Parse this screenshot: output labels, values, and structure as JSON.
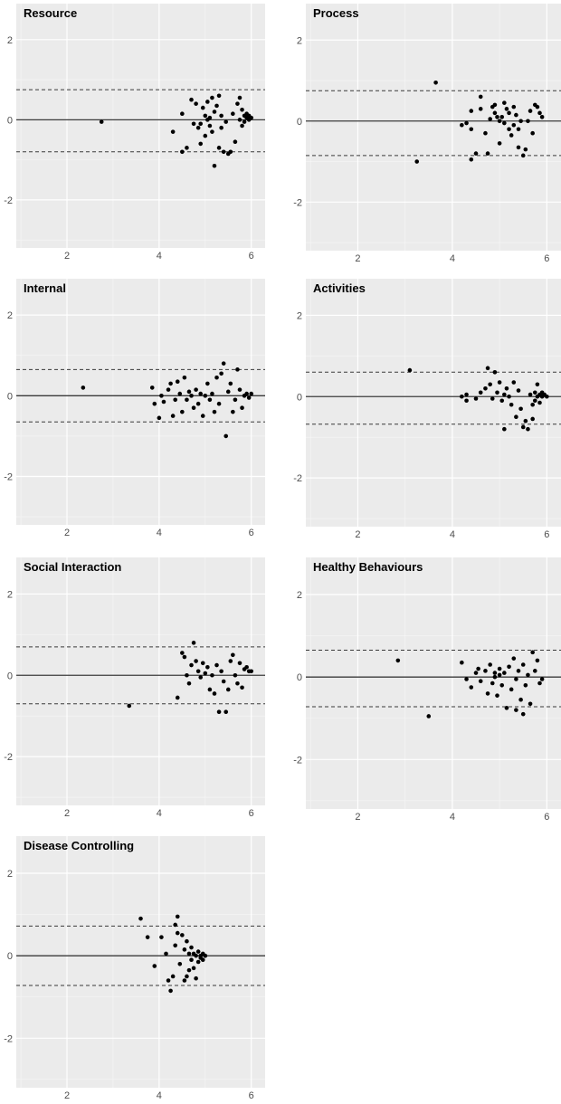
{
  "chart_data": [
    {
      "type": "scatter",
      "title": "Resource",
      "x_ticks": [
        "2",
        "4",
        "6"
      ],
      "y_ticks": [
        "2",
        "0",
        "-2"
      ],
      "xlim": [
        0.9,
        6.3
      ],
      "ylim": [
        -3.2,
        2.9
      ],
      "hlines": {
        "mean": 0,
        "upper_loa": 0.75,
        "lower_loa": -0.8
      },
      "points": [
        [
          2.75,
          -0.05
        ],
        [
          4.3,
          -0.3
        ],
        [
          4.5,
          0.15
        ],
        [
          4.5,
          -0.8
        ],
        [
          4.6,
          -0.7
        ],
        [
          4.7,
          0.5
        ],
        [
          4.75,
          -0.1
        ],
        [
          4.8,
          0.4
        ],
        [
          4.85,
          -0.2
        ],
        [
          4.9,
          -0.1
        ],
        [
          4.9,
          -0.6
        ],
        [
          4.95,
          0.3
        ],
        [
          5.0,
          0.1
        ],
        [
          5.0,
          -0.4
        ],
        [
          5.05,
          0.0
        ],
        [
          5.05,
          0.45
        ],
        [
          5.1,
          -0.15
        ],
        [
          5.1,
          0.05
        ],
        [
          5.15,
          0.55
        ],
        [
          5.15,
          -0.3
        ],
        [
          5.2,
          -1.15
        ],
        [
          5.2,
          0.2
        ],
        [
          5.25,
          0.35
        ],
        [
          5.3,
          0.6
        ],
        [
          5.3,
          -0.7
        ],
        [
          5.35,
          -0.2
        ],
        [
          5.35,
          0.1
        ],
        [
          5.4,
          -0.8
        ],
        [
          5.45,
          -0.05
        ],
        [
          5.5,
          -0.85
        ],
        [
          5.55,
          -0.8
        ],
        [
          5.6,
          0.15
        ],
        [
          5.65,
          -0.55
        ],
        [
          5.7,
          0.4
        ],
        [
          5.75,
          0.0
        ],
        [
          5.75,
          0.55
        ],
        [
          5.8,
          -0.15
        ],
        [
          5.8,
          0.25
        ],
        [
          5.85,
          0.1
        ],
        [
          5.85,
          -0.05
        ],
        [
          5.9,
          0.05
        ],
        [
          5.9,
          0.15
        ],
        [
          5.95,
          0.0
        ],
        [
          5.95,
          0.1
        ],
        [
          6.0,
          0.05
        ]
      ]
    },
    {
      "type": "scatter",
      "title": "Process",
      "x_ticks": [
        "2",
        "4",
        "6"
      ],
      "y_ticks": [
        "2",
        "0",
        "-2"
      ],
      "xlim": [
        0.9,
        6.3
      ],
      "ylim": [
        -3.2,
        2.9
      ],
      "hlines": {
        "mean": 0,
        "upper_loa": 0.75,
        "lower_loa": -0.85
      },
      "points": [
        [
          3.25,
          -1.0
        ],
        [
          3.65,
          0.95
        ],
        [
          4.2,
          -0.1
        ],
        [
          4.3,
          -0.05
        ],
        [
          4.4,
          0.25
        ],
        [
          4.4,
          -0.2
        ],
        [
          4.4,
          -0.95
        ],
        [
          4.5,
          -0.8
        ],
        [
          4.6,
          0.3
        ],
        [
          4.6,
          0.6
        ],
        [
          4.7,
          -0.3
        ],
        [
          4.75,
          -0.8
        ],
        [
          4.8,
          0.05
        ],
        [
          4.85,
          0.35
        ],
        [
          4.9,
          0.2
        ],
        [
          4.9,
          0.4
        ],
        [
          4.95,
          0.1
        ],
        [
          5.0,
          0.0
        ],
        [
          5.0,
          -0.55
        ],
        [
          5.05,
          0.1
        ],
        [
          5.1,
          -0.05
        ],
        [
          5.1,
          0.45
        ],
        [
          5.15,
          0.3
        ],
        [
          5.2,
          -0.2
        ],
        [
          5.2,
          0.2
        ],
        [
          5.25,
          -0.35
        ],
        [
          5.3,
          0.35
        ],
        [
          5.3,
          -0.1
        ],
        [
          5.35,
          0.15
        ],
        [
          5.4,
          -0.2
        ],
        [
          5.4,
          -0.65
        ],
        [
          5.45,
          0.0
        ],
        [
          5.5,
          -0.85
        ],
        [
          5.55,
          -0.7
        ],
        [
          5.6,
          0.0
        ],
        [
          5.65,
          0.25
        ],
        [
          5.7,
          -0.3
        ],
        [
          5.75,
          0.4
        ],
        [
          5.8,
          0.35
        ],
        [
          5.85,
          0.2
        ],
        [
          5.9,
          0.1
        ]
      ]
    },
    {
      "type": "scatter",
      "title": "Internal",
      "x_ticks": [
        "2",
        "4",
        "6"
      ],
      "y_ticks": [
        "2",
        "0",
        "-2"
      ],
      "xlim": [
        0.9,
        6.3
      ],
      "ylim": [
        -3.2,
        2.9
      ],
      "hlines": {
        "mean": 0,
        "upper_loa": 0.65,
        "lower_loa": -0.65
      },
      "points": [
        [
          2.35,
          0.2
        ],
        [
          3.85,
          0.2
        ],
        [
          3.9,
          -0.2
        ],
        [
          4.0,
          -0.55
        ],
        [
          4.05,
          0.0
        ],
        [
          4.1,
          -0.15
        ],
        [
          4.2,
          0.15
        ],
        [
          4.25,
          0.3
        ],
        [
          4.3,
          -0.5
        ],
        [
          4.35,
          -0.1
        ],
        [
          4.4,
          0.35
        ],
        [
          4.45,
          0.05
        ],
        [
          4.5,
          -0.4
        ],
        [
          4.55,
          0.45
        ],
        [
          4.6,
          -0.1
        ],
        [
          4.65,
          0.1
        ],
        [
          4.7,
          0.0
        ],
        [
          4.75,
          -0.3
        ],
        [
          4.8,
          0.15
        ],
        [
          4.85,
          -0.2
        ],
        [
          4.9,
          0.05
        ],
        [
          4.95,
          -0.5
        ],
        [
          5.0,
          0.0
        ],
        [
          5.05,
          0.3
        ],
        [
          5.1,
          -0.1
        ],
        [
          5.15,
          0.05
        ],
        [
          5.2,
          -0.4
        ],
        [
          5.25,
          0.45
        ],
        [
          5.3,
          -0.2
        ],
        [
          5.35,
          0.55
        ],
        [
          5.4,
          0.8
        ],
        [
          5.45,
          -1.0
        ],
        [
          5.5,
          0.1
        ],
        [
          5.55,
          0.3
        ],
        [
          5.6,
          -0.4
        ],
        [
          5.65,
          -0.1
        ],
        [
          5.7,
          0.65
        ],
        [
          5.75,
          0.15
        ],
        [
          5.8,
          -0.3
        ],
        [
          5.85,
          0.0
        ],
        [
          5.9,
          0.05
        ],
        [
          5.95,
          -0.05
        ],
        [
          6.0,
          0.05
        ]
      ]
    },
    {
      "type": "scatter",
      "title": "Activities",
      "x_ticks": [
        "2",
        "4",
        "6"
      ],
      "y_ticks": [
        "2",
        "0",
        "-2"
      ],
      "xlim": [
        0.9,
        6.3
      ],
      "ylim": [
        -3.2,
        2.9
      ],
      "hlines": {
        "mean": 0,
        "upper_loa": 0.6,
        "lower_loa": -0.68
      },
      "points": [
        [
          3.1,
          0.65
        ],
        [
          4.2,
          0.0
        ],
        [
          4.3,
          0.05
        ],
        [
          4.3,
          -0.1
        ],
        [
          4.5,
          -0.05
        ],
        [
          4.6,
          0.1
        ],
        [
          4.7,
          0.2
        ],
        [
          4.75,
          0.7
        ],
        [
          4.8,
          0.3
        ],
        [
          4.85,
          -0.05
        ],
        [
          4.9,
          0.6
        ],
        [
          4.95,
          0.1
        ],
        [
          5.0,
          0.35
        ],
        [
          5.05,
          -0.1
        ],
        [
          5.1,
          0.05
        ],
        [
          5.1,
          -0.8
        ],
        [
          5.15,
          0.2
        ],
        [
          5.2,
          0.0
        ],
        [
          5.25,
          -0.2
        ],
        [
          5.3,
          0.35
        ],
        [
          5.35,
          -0.5
        ],
        [
          5.4,
          0.15
        ],
        [
          5.45,
          -0.3
        ],
        [
          5.5,
          -0.75
        ],
        [
          5.55,
          -0.6
        ],
        [
          5.6,
          -0.8
        ],
        [
          5.65,
          0.05
        ],
        [
          5.7,
          -0.55
        ],
        [
          5.7,
          -0.2
        ],
        [
          5.75,
          0.1
        ],
        [
          5.75,
          -0.1
        ],
        [
          5.8,
          0.0
        ],
        [
          5.8,
          0.3
        ],
        [
          5.85,
          0.05
        ],
        [
          5.85,
          -0.15
        ],
        [
          5.9,
          0.1
        ],
        [
          5.9,
          0.0
        ],
        [
          5.95,
          0.05
        ],
        [
          6.0,
          0.0
        ]
      ]
    },
    {
      "type": "scatter",
      "title": "Social Interaction",
      "x_ticks": [
        "2",
        "4",
        "6"
      ],
      "y_ticks": [
        "2",
        "0",
        "-2"
      ],
      "xlim": [
        0.9,
        6.3
      ],
      "ylim": [
        -3.2,
        2.9
      ],
      "hlines": {
        "mean": 0,
        "upper_loa": 0.7,
        "lower_loa": -0.7
      },
      "points": [
        [
          3.35,
          -0.75
        ],
        [
          4.4,
          -0.55
        ],
        [
          4.5,
          0.55
        ],
        [
          4.55,
          0.45
        ],
        [
          4.6,
          0.0
        ],
        [
          4.65,
          -0.2
        ],
        [
          4.7,
          0.25
        ],
        [
          4.75,
          0.8
        ],
        [
          4.8,
          0.35
        ],
        [
          4.85,
          0.1
        ],
        [
          4.9,
          -0.05
        ],
        [
          4.95,
          0.3
        ],
        [
          5.0,
          0.05
        ],
        [
          5.05,
          0.2
        ],
        [
          5.1,
          -0.35
        ],
        [
          5.15,
          0.0
        ],
        [
          5.2,
          -0.45
        ],
        [
          5.25,
          0.25
        ],
        [
          5.3,
          -0.9
        ],
        [
          5.35,
          0.1
        ],
        [
          5.4,
          -0.15
        ],
        [
          5.45,
          -0.9
        ],
        [
          5.5,
          -0.35
        ],
        [
          5.55,
          0.35
        ],
        [
          5.6,
          0.5
        ],
        [
          5.65,
          0.0
        ],
        [
          5.7,
          -0.2
        ],
        [
          5.75,
          0.3
        ],
        [
          5.8,
          -0.3
        ],
        [
          5.85,
          0.15
        ],
        [
          5.9,
          0.2
        ],
        [
          5.95,
          0.1
        ],
        [
          6.0,
          0.1
        ]
      ]
    },
    {
      "type": "scatter",
      "title": "Healthy Behaviours",
      "x_ticks": [
        "2",
        "4",
        "6"
      ],
      "y_ticks": [
        "2",
        "0",
        "-2"
      ],
      "xlim": [
        0.9,
        6.3
      ],
      "ylim": [
        -3.2,
        2.9
      ],
      "hlines": {
        "mean": 0,
        "upper_loa": 0.65,
        "lower_loa": -0.72
      },
      "points": [
        [
          2.85,
          0.4
        ],
        [
          3.5,
          -0.95
        ],
        [
          4.2,
          0.35
        ],
        [
          4.3,
          -0.05
        ],
        [
          4.4,
          -0.25
        ],
        [
          4.5,
          0.1
        ],
        [
          4.55,
          0.2
        ],
        [
          4.6,
          -0.1
        ],
        [
          4.7,
          0.15
        ],
        [
          4.75,
          -0.4
        ],
        [
          4.8,
          0.3
        ],
        [
          4.85,
          -0.15
        ],
        [
          4.9,
          0.1
        ],
        [
          4.9,
          0.0
        ],
        [
          4.95,
          -0.45
        ],
        [
          5.0,
          0.05
        ],
        [
          5.0,
          0.2
        ],
        [
          5.05,
          -0.2
        ],
        [
          5.1,
          0.1
        ],
        [
          5.15,
          -0.75
        ],
        [
          5.2,
          0.25
        ],
        [
          5.25,
          -0.3
        ],
        [
          5.3,
          0.45
        ],
        [
          5.35,
          -0.8
        ],
        [
          5.35,
          -0.05
        ],
        [
          5.4,
          0.15
        ],
        [
          5.45,
          -0.55
        ],
        [
          5.5,
          -0.9
        ],
        [
          5.5,
          0.3
        ],
        [
          5.55,
          -0.2
        ],
        [
          5.6,
          0.05
        ],
        [
          5.65,
          -0.65
        ],
        [
          5.7,
          0.6
        ],
        [
          5.75,
          0.15
        ],
        [
          5.8,
          0.4
        ],
        [
          5.85,
          -0.15
        ],
        [
          5.9,
          -0.05
        ]
      ]
    },
    {
      "type": "scatter",
      "title": "Disease Controlling",
      "x_ticks": [
        "2",
        "4",
        "6"
      ],
      "y_ticks": [
        "2",
        "0",
        "-2"
      ],
      "xlim": [
        0.9,
        6.3
      ],
      "ylim": [
        -3.2,
        2.9
      ],
      "hlines": {
        "mean": 0,
        "upper_loa": 0.72,
        "lower_loa": -0.72
      },
      "points": [
        [
          3.6,
          0.9
        ],
        [
          3.75,
          0.45
        ],
        [
          3.9,
          -0.25
        ],
        [
          4.05,
          0.45
        ],
        [
          4.15,
          0.05
        ],
        [
          4.2,
          -0.6
        ],
        [
          4.25,
          -0.85
        ],
        [
          4.3,
          -0.5
        ],
        [
          4.35,
          0.75
        ],
        [
          4.35,
          0.25
        ],
        [
          4.4,
          0.55
        ],
        [
          4.4,
          0.95
        ],
        [
          4.45,
          -0.2
        ],
        [
          4.5,
          0.5
        ],
        [
          4.55,
          -0.6
        ],
        [
          4.55,
          0.15
        ],
        [
          4.6,
          -0.5
        ],
        [
          4.6,
          0.35
        ],
        [
          4.65,
          0.05
        ],
        [
          4.65,
          -0.35
        ],
        [
          4.7,
          -0.1
        ],
        [
          4.7,
          0.2
        ],
        [
          4.75,
          0.05
        ],
        [
          4.75,
          -0.3
        ],
        [
          4.8,
          0.0
        ],
        [
          4.8,
          -0.55
        ],
        [
          4.85,
          0.1
        ],
        [
          4.85,
          -0.15
        ],
        [
          4.9,
          0.0
        ],
        [
          4.9,
          -0.05
        ],
        [
          4.95,
          0.05
        ],
        [
          4.95,
          -0.1
        ],
        [
          5.0,
          0.0
        ],
        [
          5.0,
          0.0
        ]
      ]
    }
  ]
}
